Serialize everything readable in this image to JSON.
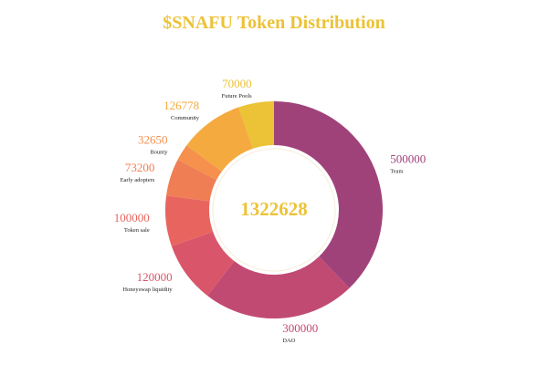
{
  "chart_data": {
    "type": "pie",
    "title": "$SNAFU Token Distribution",
    "total_label": "1322628",
    "slices": [
      {
        "label": "Team",
        "value": 500000,
        "value_label": "500000",
        "color": "#a0427a"
      },
      {
        "label": "DAO",
        "value": 300000,
        "value_label": "300000",
        "color": "#c14a73"
      },
      {
        "label": "Honeyswap liquidity",
        "value": 120000,
        "value_label": "120000",
        "color": "#d95569"
      },
      {
        "label": "Token sale",
        "value": 100000,
        "value_label": "100000",
        "color": "#e8655f"
      },
      {
        "label": "Early adopters",
        "value": 73200,
        "value_label": "73200",
        "color": "#f07e55"
      },
      {
        "label": "Bounty",
        "value": 32650,
        "value_label": "32650",
        "color": "#f5904d"
      },
      {
        "label": "Community",
        "value": 126778,
        "value_label": "126778",
        "color": "#f4aa3f"
      },
      {
        "label": "Future Pools",
        "value": 70000,
        "value_label": "70000",
        "color": "#ecc237"
      }
    ]
  },
  "colors": {
    "title": "#ecc237",
    "total": "#ecc237"
  }
}
